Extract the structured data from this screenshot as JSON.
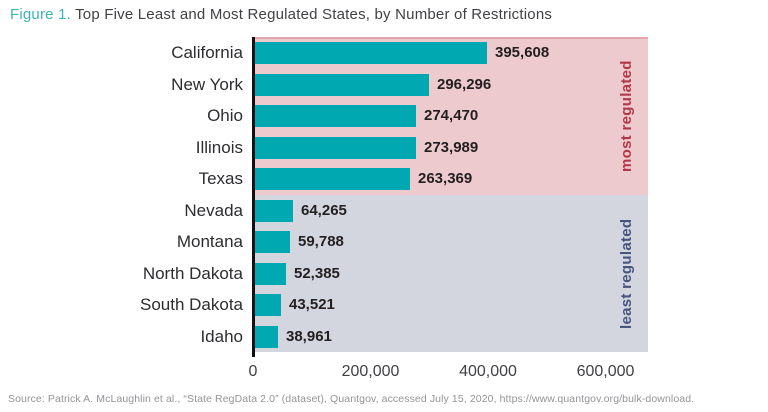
{
  "figure": {
    "label": "Figure 1.",
    "title": "Top Five Least and Most Regulated States, by Number of Restrictions"
  },
  "chart_data": {
    "type": "bar",
    "orientation": "horizontal",
    "title": "Figure 1. Top Five Least and Most Regulated States, by Number of Restrictions",
    "categories": [
      "California",
      "New York",
      "Ohio",
      "Illinois",
      "Texas",
      "Nevada",
      "Montana",
      "North Dakota",
      "South Dakota",
      "Idaho"
    ],
    "values": [
      395608,
      296296,
      274470,
      273989,
      263369,
      64265,
      59788,
      52385,
      43521,
      38961
    ],
    "value_labels": [
      "395,608",
      "296,296",
      "274,470",
      "273,989",
      "263,369",
      "64,265",
      "59,788",
      "52,385",
      "43,521",
      "38,961"
    ],
    "bar_color": "#00a9b2",
    "groups": [
      {
        "name": "most regulated",
        "band_color": "#edcacd",
        "label_color": "#b23848",
        "count": 5
      },
      {
        "name": "least regulated",
        "band_color": "#d3d5df",
        "label_color": "#46567d",
        "count": 5
      }
    ],
    "xlabel": "",
    "ylabel": "",
    "xlim": [
      0,
      668000
    ],
    "grid": false,
    "xticks": [
      {
        "value": 0,
        "label": "0"
      },
      {
        "value": 200000,
        "label": "200,000"
      },
      {
        "value": 400000,
        "label": "400,000"
      },
      {
        "value": 600000,
        "label": "600,000"
      }
    ]
  },
  "source": "Source: Patrick A. McLaughlin et al., “State RegData 2.0” (dataset), Quantgov, accessed July 15, 2020, https://www.quantgov.org/bulk-download."
}
